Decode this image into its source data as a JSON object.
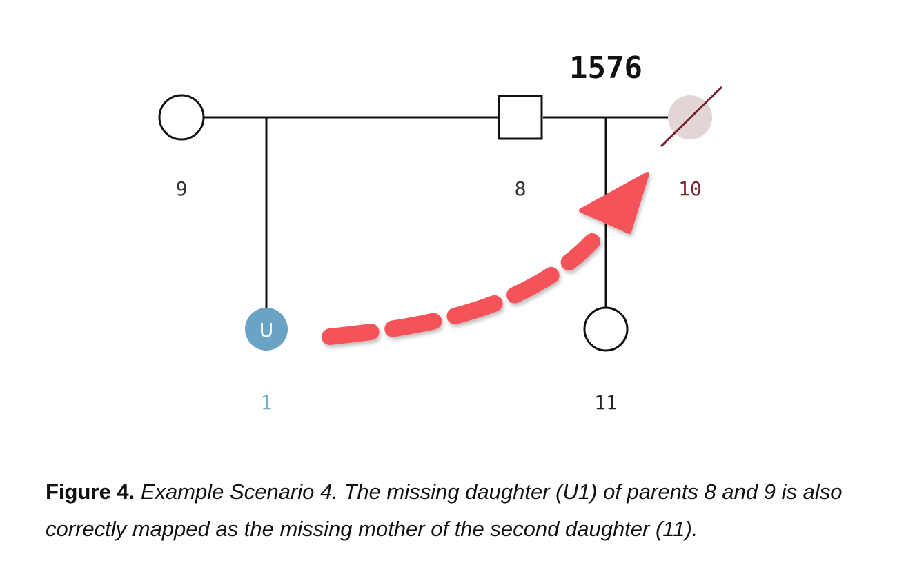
{
  "pedigree": {
    "family_id": "1576",
    "nodes": {
      "n9": {
        "id": "9",
        "shape": "circle"
      },
      "n8": {
        "id": "8",
        "shape": "square"
      },
      "n10": {
        "id": "10",
        "shape": "circle",
        "status": "deceased"
      },
      "n1": {
        "id": "1",
        "shape": "circle",
        "badge": "U"
      },
      "n11": {
        "id": "11",
        "shape": "circle"
      }
    }
  },
  "colors": {
    "line": "#111111",
    "label": "#333333",
    "deceased_fill": "#e2d5d5",
    "deceased_slash": "#7a1f2b",
    "deceased_label": "#7a1f2b",
    "unknown_fill": "#6aa3c4",
    "unknown_label": "#7aaed0",
    "arrow": "#f5525a"
  },
  "caption": {
    "label": "Figure 4.",
    "text": " Example Scenario 4. The missing daughter (U1) of parents 8 and 9 is also correctly mapped as the missing mother of the second daughter (11)."
  }
}
